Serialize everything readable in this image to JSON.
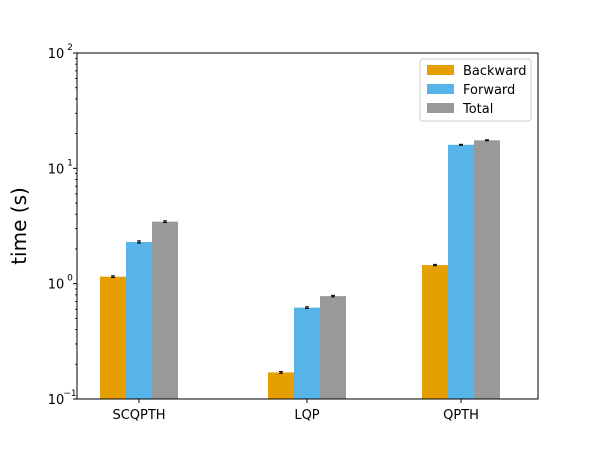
{
  "chart_data": {
    "type": "bar",
    "title": "",
    "xlabel": "",
    "ylabel": "time (s)",
    "yscale": "log",
    "ylim": [
      0.1,
      100
    ],
    "y_ticks": [
      {
        "base": "10",
        "exp": "−1",
        "value": 0.1
      },
      {
        "base": "10",
        "exp": "0",
        "value": 1
      },
      {
        "base": "10",
        "exp": "1",
        "value": 10
      },
      {
        "base": "10",
        "exp": "2",
        "value": 100
      }
    ],
    "categories": [
      "SCQPTH",
      "LQP",
      "QPTH"
    ],
    "series": [
      {
        "name": "Backward",
        "color": "#E69F00",
        "values": [
          1.15,
          0.17,
          1.45
        ],
        "errors": [
          0.02,
          0.003,
          0.02
        ]
      },
      {
        "name": "Forward",
        "color": "#56B4E9",
        "values": [
          2.3,
          0.62,
          16.0
        ],
        "errors": [
          0.05,
          0.01,
          0.15
        ]
      },
      {
        "name": "Total",
        "color": "#999999",
        "values": [
          3.45,
          0.78,
          17.5
        ],
        "errors": [
          0.06,
          0.012,
          0.18
        ]
      }
    ],
    "legend_position": "top-right",
    "grid": false
  }
}
